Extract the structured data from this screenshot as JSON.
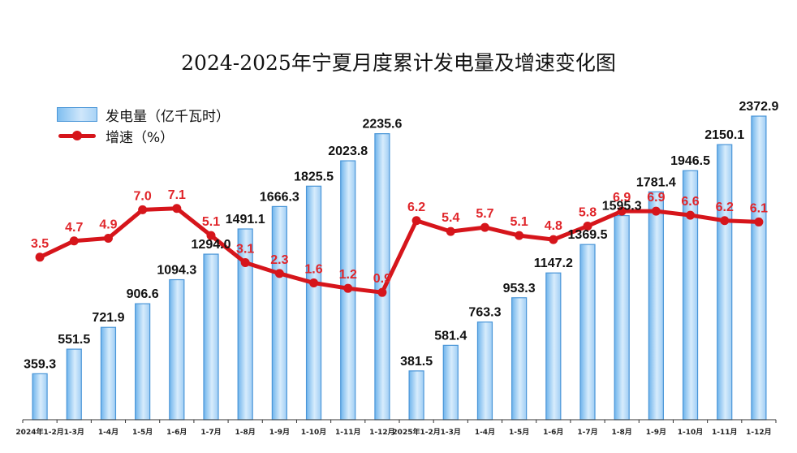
{
  "chart_data": {
    "type": "bar+line",
    "title": "2024-2025年宁夏月度累计发电量及增速变化图",
    "categories": [
      "2024年1-2月",
      "1-3月",
      "1-4月",
      "1-5月",
      "1-6月",
      "1-7月",
      "1-8月",
      "1-9月",
      "1-10月",
      "1-11月",
      "1-12月",
      "2025年1-2月",
      "1-3月",
      "1-4月",
      "1-5月",
      "1-6月",
      "1-7月",
      "1-8月",
      "1-9月",
      "1-10月",
      "1-11月",
      "1-12月"
    ],
    "series": [
      {
        "name": "发电量（亿千瓦时）",
        "type": "bar",
        "values": [
          359.3,
          551.5,
          721.9,
          906.6,
          1094.3,
          1294.0,
          1491.1,
          1666.3,
          1825.5,
          2023.8,
          2235.6,
          381.5,
          581.4,
          763.3,
          953.3,
          1147.2,
          1369.5,
          1595.3,
          1781.4,
          1946.5,
          2150.1,
          2372.9
        ]
      },
      {
        "name": "增速（%）",
        "type": "line",
        "values": [
          3.5,
          4.7,
          4.9,
          7.0,
          7.1,
          5.1,
          3.1,
          2.3,
          1.6,
          1.2,
          0.9,
          6.2,
          5.4,
          5.7,
          5.1,
          4.8,
          5.8,
          6.9,
          6.9,
          6.6,
          6.2,
          6.1
        ]
      }
    ],
    "bar_labels": [
      "359.3",
      "551.5",
      "721.9",
      "906.6",
      "1094.3",
      "1294.0",
      "1491.1",
      "1666.3",
      "1825.5",
      "2023.8",
      "2235.6",
      "381.5",
      "581.4",
      "763.3",
      "953.3",
      "1147.2",
      "1369.5",
      "1595.3",
      "1781.4",
      "1946.5",
      "2150.1",
      "2372.9"
    ],
    "line_labels": [
      "3.5",
      "4.7",
      "4.9",
      "7.0",
      "7.1",
      "5.1",
      "3.1",
      "2.3",
      "1.6",
      "1.2",
      "0.9",
      "6.2",
      "5.4",
      "5.7",
      "5.1",
      "4.8",
      "5.8",
      "6.9",
      "6.9",
      "6.6",
      "6.2",
      "6.1"
    ],
    "y_bar_range": [
      0,
      2500
    ],
    "y_line_range": [
      -8.5,
      12.3
    ],
    "legend_position": "top-left",
    "grid": false
  },
  "colors": {
    "bar_fill": "#a9d3f6",
    "bar_border": "#4a96d8",
    "line": "#d6151b",
    "bar_label": "#111111",
    "line_label": "#e0262b"
  }
}
